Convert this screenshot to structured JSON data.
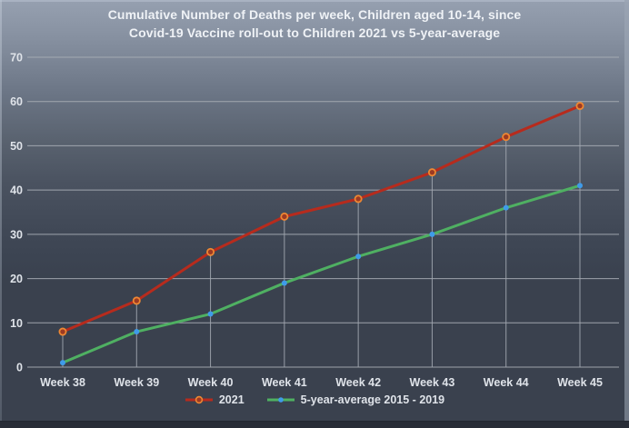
{
  "title": {
    "line1": "Cumulative Number of Deaths per week, Children aged 10-14, since",
    "line2": "Covid-19 Vaccine roll-out to Children 2021 vs 5-year-average"
  },
  "colors": {
    "background_top": "#96A0B0",
    "background_bottom": "#3A414E",
    "gridline": "#A9AEB6",
    "drop_line": "#A2A8B1",
    "tick_text": "#DFE3E9",
    "title_text": "#EFF2F6",
    "series_2021_line": "#B72B1D",
    "series_2021_marker_fill": "#9C3A23",
    "series_2021_marker_ring": "#ED8733",
    "series_avg_line": "#4FB062",
    "series_avg_marker_fill": "#3F9BE9"
  },
  "chart_data": {
    "type": "line",
    "title": "Cumulative Number of Deaths per week, Children aged 10-14, since Covid-19 Vaccine roll-out to Children 2021 vs 5-year-average",
    "categories": [
      "Week 38",
      "Week 39",
      "Week 40",
      "Week 41",
      "Week 42",
      "Week 43",
      "Week 44",
      "Week 45"
    ],
    "series": [
      {
        "name": "2021",
        "values": [
          8,
          15,
          26,
          34,
          38,
          44,
          52,
          59
        ],
        "line_color": "#B72B1D",
        "marker": "circle-ringed"
      },
      {
        "name": "5-year-average 2015 - 2019",
        "values": [
          1,
          8,
          12,
          19,
          25,
          30,
          36,
          41
        ],
        "line_color": "#4FB062",
        "marker": "circle"
      }
    ],
    "xlabel": "",
    "ylabel": "",
    "ylim": [
      0,
      70
    ],
    "y_ticks": [
      0,
      10,
      20,
      30,
      40,
      50,
      60,
      70
    ],
    "grid": "horizontal gridlines at each y tick; vertical drop lines from each 2021 data point to the x-axis",
    "legend_position": "bottom-center"
  }
}
